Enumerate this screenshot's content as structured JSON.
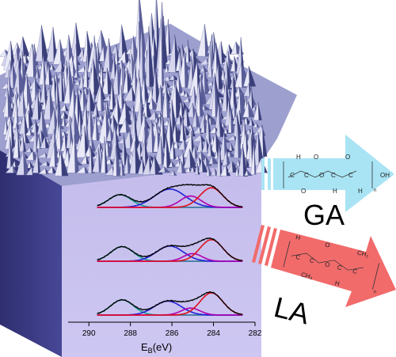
{
  "colors": {
    "panel_front": "#c9c2ef",
    "panel_side": "#3a3a86",
    "surface_light": "#e9e9f7",
    "surface_mid": "#9d9fcf",
    "surface_dark": "#3a3f7a",
    "baseline": "#ff33ff",
    "envelope": "#000000",
    "comp_teal": "#169b8c",
    "comp_blue": "#2020d8",
    "comp_magenta": "#b000b0",
    "comp_red": "#e0101a",
    "arrow_ga": "#a9e4f4",
    "arrow_la": "#f26b6b"
  },
  "xps": {
    "axis_label_main": "E",
    "axis_label_sub": "B",
    "axis_label_unit": "(eV)",
    "ticks": [
      "290",
      "288",
      "286",
      "284",
      "282"
    ],
    "tick_values": [
      290,
      288,
      286,
      284,
      282
    ],
    "xlim": [
      291,
      282
    ],
    "spectra": [
      {
        "components": [
          {
            "name": "teal",
            "center": 288.5,
            "height": 1.0,
            "width": 0.55
          },
          {
            "name": "blue",
            "center": 286.1,
            "height": 1.45,
            "width": 0.75
          },
          {
            "name": "magenta",
            "center": 285.1,
            "height": 0.9,
            "width": 0.5
          },
          {
            "name": "red",
            "center": 284.1,
            "height": 1.55,
            "width": 0.55
          }
        ]
      },
      {
        "components": [
          {
            "name": "teal",
            "center": 288.4,
            "height": 1.15,
            "width": 0.55
          },
          {
            "name": "blue",
            "center": 286.1,
            "height": 1.2,
            "width": 0.65
          },
          {
            "name": "magenta",
            "center": 285.0,
            "height": 0.6,
            "width": 0.45
          },
          {
            "name": "red",
            "center": 284.1,
            "height": 1.7,
            "width": 0.55
          }
        ]
      },
      {
        "components": [
          {
            "name": "teal",
            "center": 288.4,
            "height": 1.2,
            "width": 0.55
          },
          {
            "name": "blue",
            "center": 286.2,
            "height": 1.1,
            "width": 0.65
          },
          {
            "name": "magenta",
            "center": 285.1,
            "height": 0.55,
            "width": 0.45
          },
          {
            "name": "red",
            "center": 284.1,
            "height": 1.75,
            "width": 0.55
          }
        ]
      }
    ]
  },
  "labels": {
    "ga": "GA",
    "la": "LA"
  },
  "ga_chain": {
    "top_atoms": [
      "H",
      "O",
      "O"
    ],
    "mid_atoms": [
      "C",
      "C",
      "O",
      "C",
      "C",
      "OH"
    ],
    "bottom_atoms": [
      "O",
      "H",
      "H"
    ],
    "subscript": "n"
  },
  "la_chain": {
    "top_atoms": [
      "H",
      "O",
      "CH₃"
    ],
    "mid_atoms": [
      "C",
      "C",
      "O",
      "C",
      "C"
    ],
    "bottom_atoms": [
      "CH₃",
      "H"
    ],
    "subscript": "n"
  }
}
